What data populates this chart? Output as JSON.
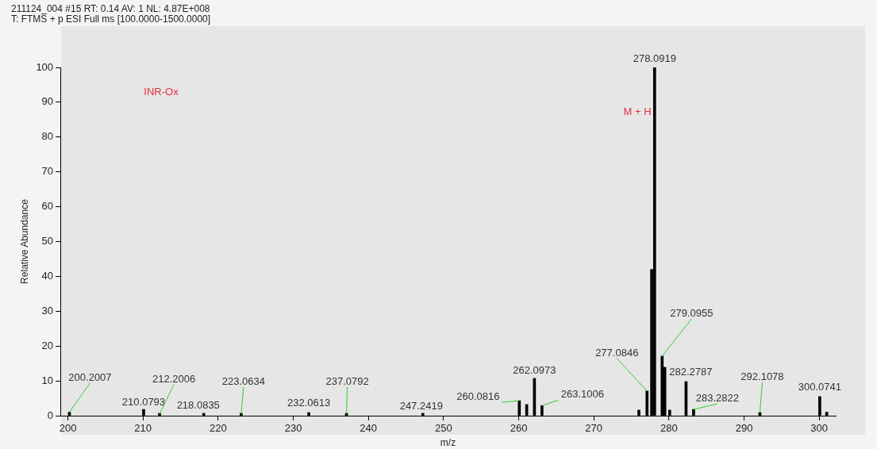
{
  "chart_data": {
    "type": "bar",
    "title": "211124_004 #15 RT: 0.14 AV: 1 NL: 4.87E+008",
    "subtitle": "T: FTMS + p ESI Full ms [100.0000-1500.0000]",
    "xlabel": "m/z",
    "ylabel": "Relative Abundance",
    "annotations": [
      "INR-Ox",
      "M + H",
      {
        "text": "200.2007",
        "x": 200.2007,
        "y": 1
      },
      {
        "text": "210.0793",
        "x": 210.0793,
        "y": 1.8
      },
      {
        "text": "212.2006",
        "x": 212.2006,
        "y": 0.5
      },
      {
        "text": "218.0835",
        "x": 218.0835,
        "y": 0.5
      },
      {
        "text": "223.0634",
        "x": 223.0634,
        "y": 0.5
      },
      {
        "text": "232.0613",
        "x": 232.0613,
        "y": 0.9
      },
      {
        "text": "237.0792",
        "x": 237.0792,
        "y": 0.5
      },
      {
        "text": "247.2419",
        "x": 247.2419,
        "y": 0.5
      },
      {
        "text": "260.0816",
        "x": 260.0816,
        "y": 4.3
      },
      {
        "text": "262.0973",
        "x": 262.0973,
        "y": 10.7
      },
      {
        "text": "263.1006",
        "x": 263.1006,
        "y": 2.9
      },
      {
        "text": "277.0846",
        "x": 277.0846,
        "y": 7.1
      },
      {
        "text": "278.0919",
        "x": 278.0919,
        "y": 100
      },
      {
        "text": "279.0955",
        "x": 279.0955,
        "y": 17.1
      },
      {
        "text": "282.2787",
        "x": 282.2787,
        "y": 9.8
      },
      {
        "text": "283.2822",
        "x": 283.2822,
        "y": 1.8
      },
      {
        "text": "292.1078",
        "x": 292.1078,
        "y": 0.9
      },
      {
        "text": "300.0741",
        "x": 300.0741,
        "y": 5.5
      }
    ],
    "series": [
      {
        "color": "#000000",
        "x": [
          200.2007,
          210.0793,
          212.2006,
          218.0835,
          223.0634,
          232.0613,
          237.0792,
          247.2419,
          260.0816,
          261.07,
          262.0973,
          263.1006,
          276.0,
          277.0846,
          277.7,
          278.0919,
          279.0955,
          279.45,
          280.1,
          282.2787,
          283.2822,
          292.1078,
          300.0741,
          301.0
        ],
        "values": [
          1,
          1.8,
          0.5,
          0.5,
          0.5,
          0.9,
          0.5,
          0.5,
          4.3,
          3.2,
          10.7,
          2.9,
          1.6,
          7.1,
          42,
          100,
          17.1,
          13.9,
          1.6,
          9.8,
          1.8,
          0.9,
          5.5,
          1
        ]
      }
    ],
    "xlim": [
      199,
      302.2
    ],
    "xticks": [
      200,
      210,
      220,
      230,
      240,
      250,
      260,
      270,
      280,
      290,
      300
    ],
    "ylim": [
      0,
      100
    ],
    "yticks": [
      0,
      10,
      20,
      30,
      40,
      50,
      60,
      70,
      80,
      90,
      100
    ],
    "grid": false,
    "legend": false
  }
}
